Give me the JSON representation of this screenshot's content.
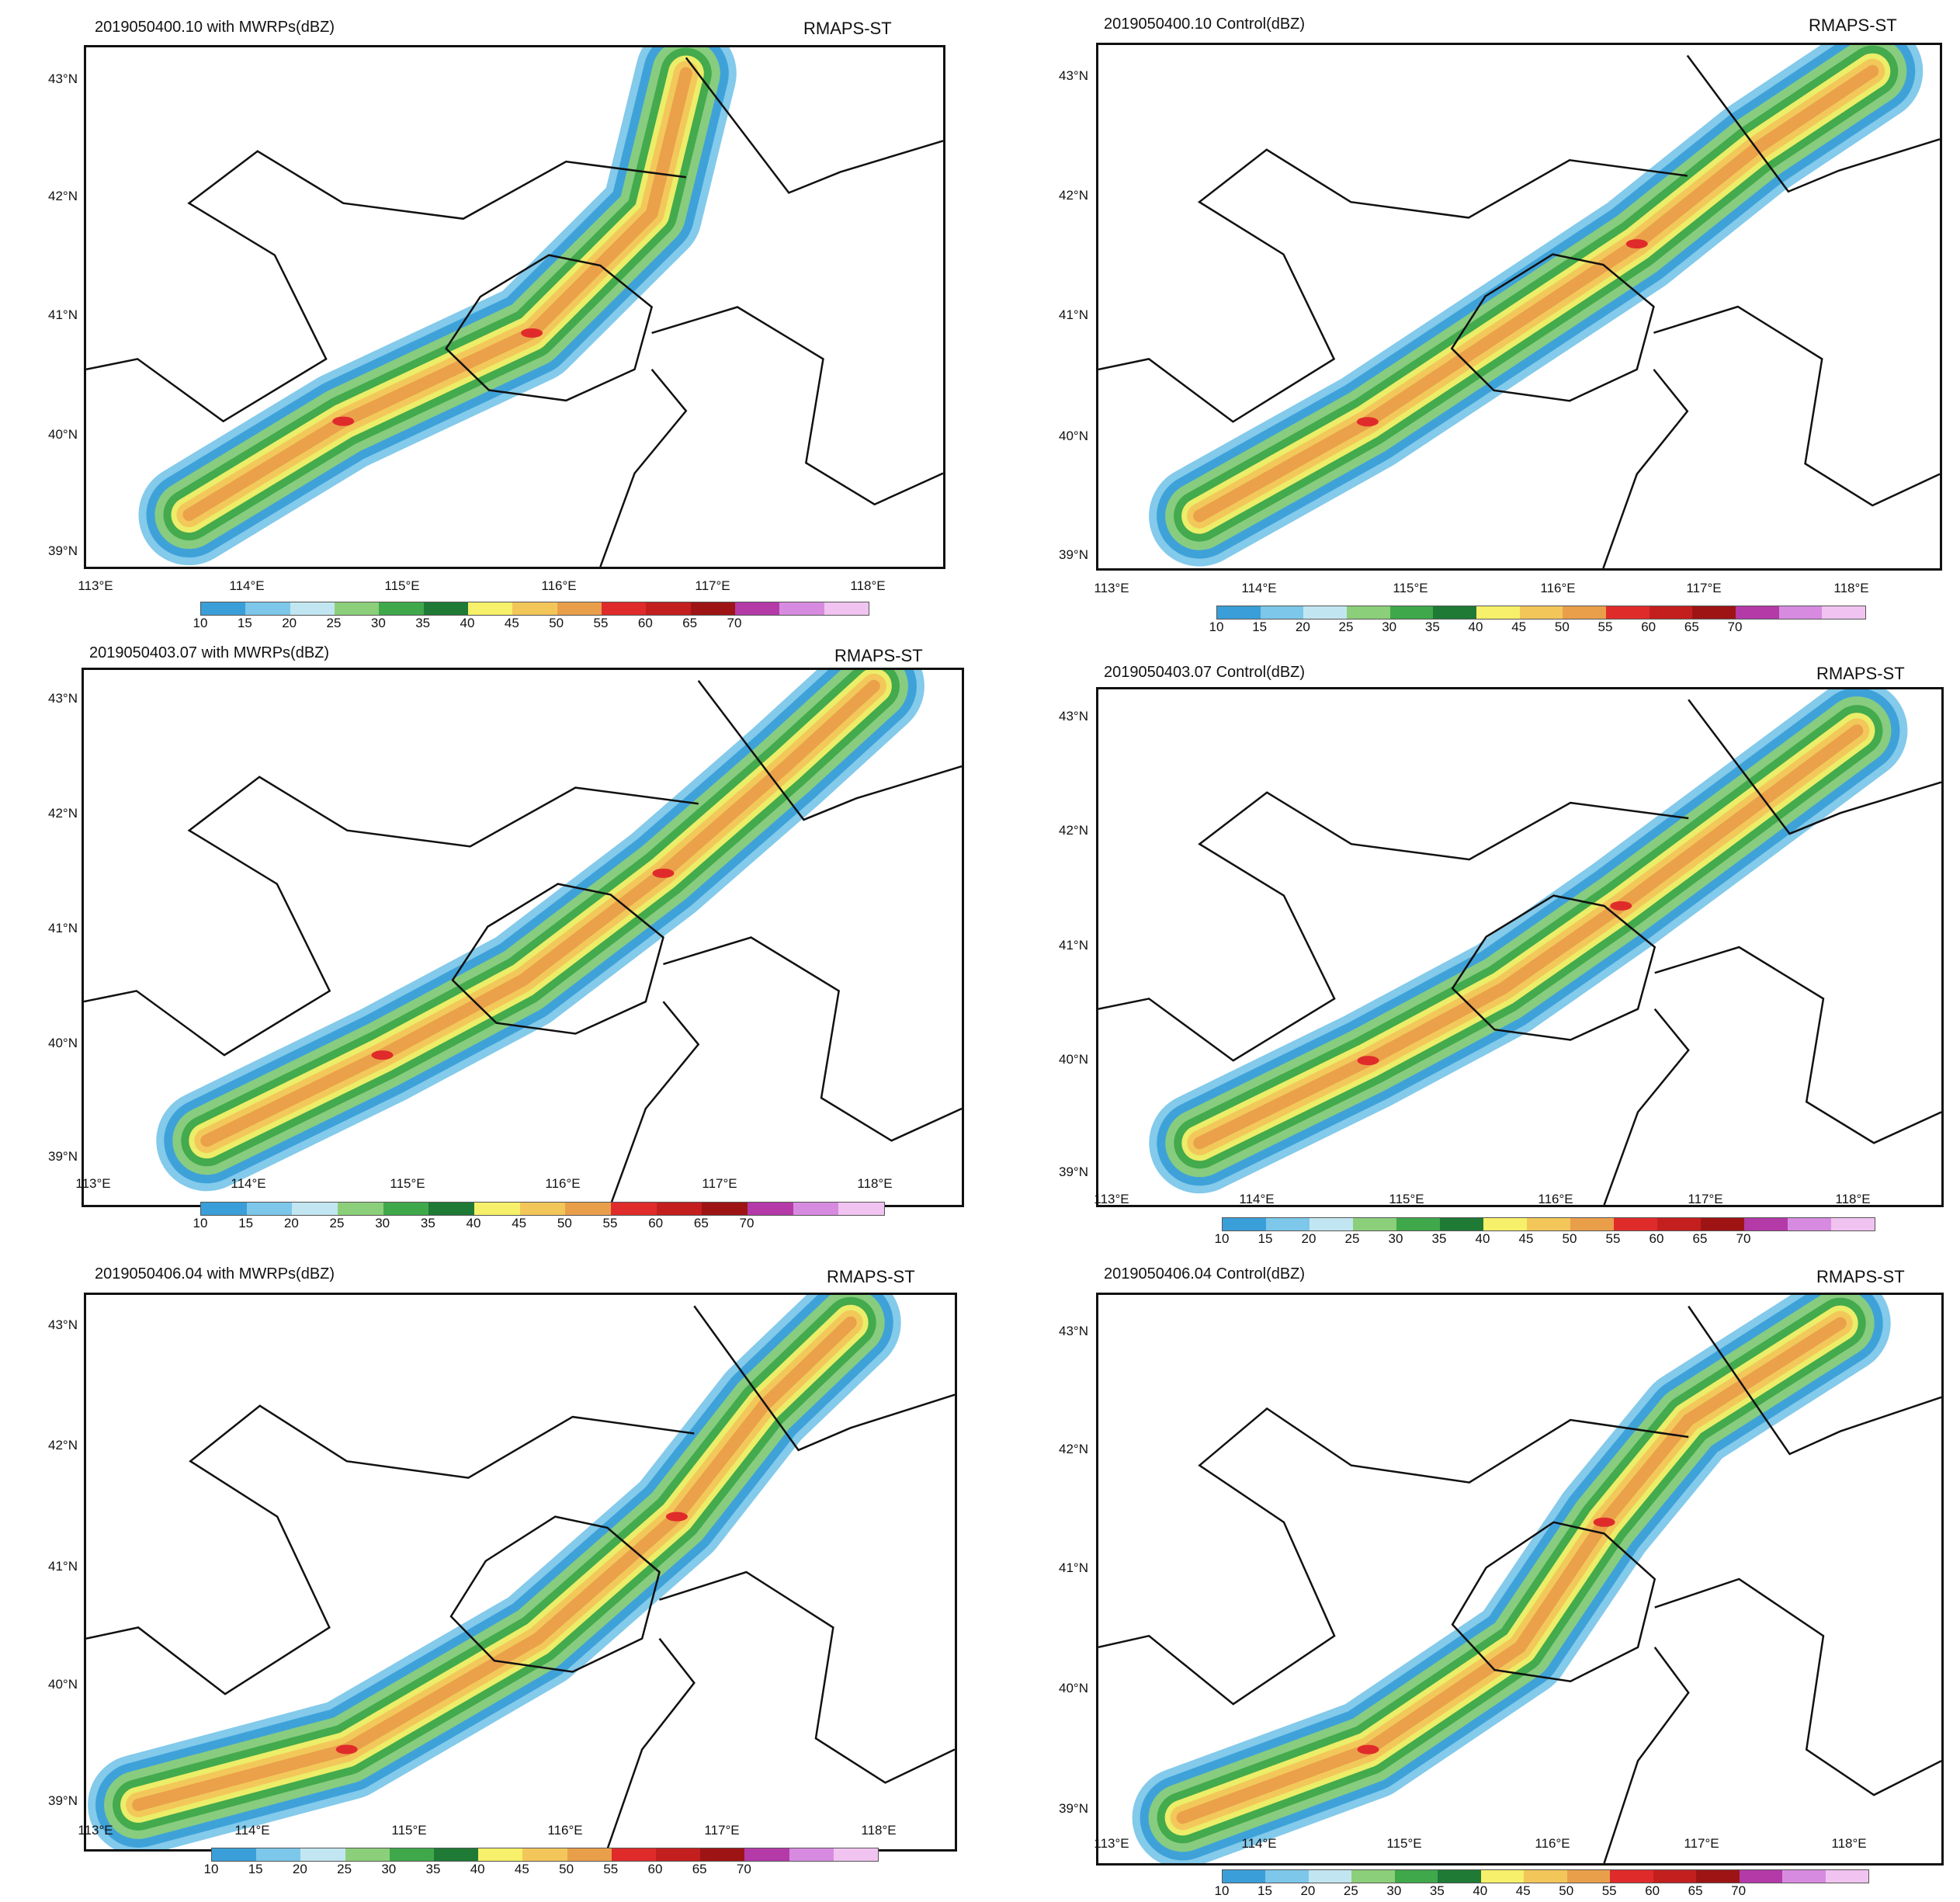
{
  "model_label": "RMAPS-ST",
  "lat_labels": [
    "43°N",
    "42°N",
    "41°N",
    "40°N",
    "39°N"
  ],
  "lon_labels": [
    "113°E",
    "114°E",
    "115°E",
    "116°E",
    "117°E",
    "118°E"
  ],
  "colorbar": {
    "labels": [
      "10",
      "15",
      "20",
      "25",
      "30",
      "35",
      "40",
      "45",
      "50",
      "55",
      "60",
      "65",
      "70"
    ],
    "colors": [
      "#3a9fd8",
      "#7cc7ea",
      "#c2e6f1",
      "#8ccf7a",
      "#3fa84b",
      "#1f7a35",
      "#f6f06a",
      "#f3c65a",
      "#e99f4a",
      "#e02b2b",
      "#c41f1f",
      "#9e1414",
      "#b43aa8",
      "#d78be0",
      "#f1c3f0"
    ]
  },
  "panels": [
    {
      "title": "2019050400.10 with MWRPs(dBZ)"
    },
    {
      "title": "2019050400.10 Control(dBZ)"
    },
    {
      "title": "2019050403.07 with MWRPs(dBZ)"
    },
    {
      "title": "2019050403.07 Control(dBZ)"
    },
    {
      "title": "2019050406.04 with MWRPs(dBZ)"
    },
    {
      "title": "2019050406.04 Control(dBZ)"
    }
  ]
}
